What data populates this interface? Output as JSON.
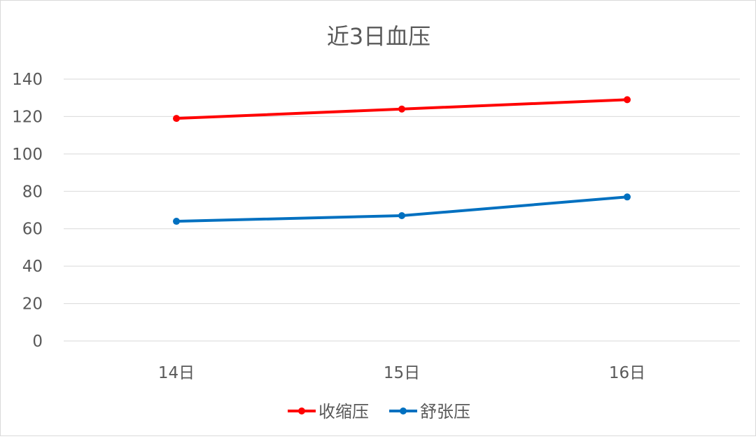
{
  "chart_data": {
    "type": "line",
    "title": "近3日血压",
    "categories": [
      "14日",
      "15日",
      "16日"
    ],
    "series": [
      {
        "name": "收缩压",
        "values": [
          119,
          124,
          129
        ],
        "color": "#ff0000"
      },
      {
        "name": "舒张压",
        "values": [
          64,
          67,
          77
        ],
        "color": "#0070c0"
      }
    ],
    "ylim": [
      0,
      140
    ],
    "yticks": [
      0,
      20,
      40,
      60,
      80,
      100,
      120,
      140
    ],
    "grid": true,
    "legend_position": "bottom",
    "xlabel": "",
    "ylabel": ""
  }
}
